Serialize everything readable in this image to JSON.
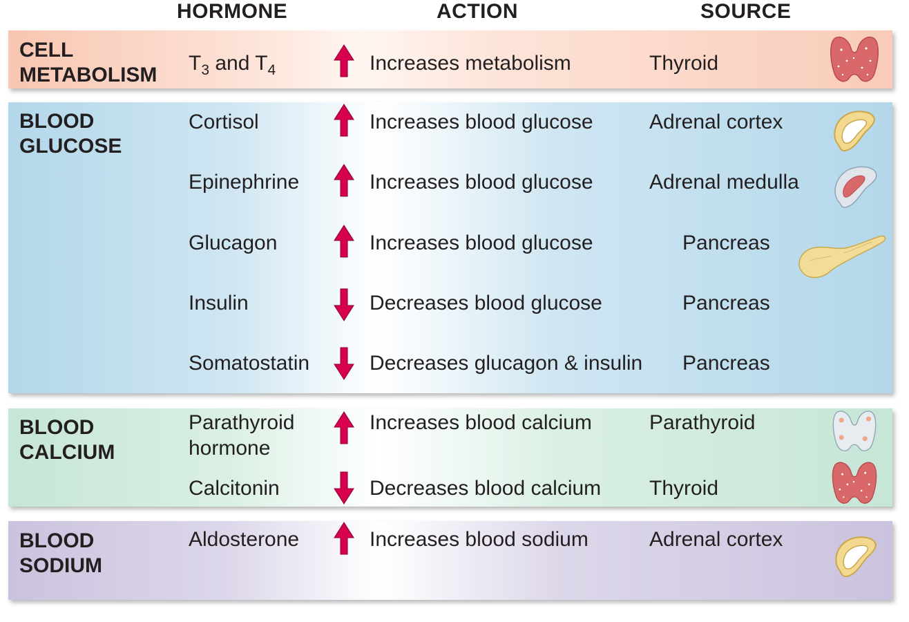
{
  "headers": {
    "hormone": "HORMONE",
    "action": "ACTION",
    "source": "SOURCE"
  },
  "categories": {
    "metabolism": [
      "CELL",
      "METABOLISM"
    ],
    "glucose": [
      "BLOOD",
      "GLUCOSE"
    ],
    "calcium": [
      "BLOOD",
      "CALCIUM"
    ],
    "sodium": [
      "BLOOD",
      "SODIUM"
    ]
  },
  "rows": {
    "t3t4": {
      "hormone_t": "T",
      "hormone_sub1": "3",
      "hormone_and": " and T",
      "hormone_sub2": "4",
      "direction": "up",
      "action": "Increases metabolism",
      "source": "Thyroid"
    },
    "cortisol": {
      "hormone": "Cortisol",
      "direction": "up",
      "action": "Increases blood glucose",
      "source": "Adrenal cortex"
    },
    "epinephrine": {
      "hormone": "Epinephrine",
      "direction": "up",
      "action": "Increases blood glucose",
      "source": "Adrenal medulla"
    },
    "glucagon": {
      "hormone": "Glucagon",
      "direction": "up",
      "action": "Increases blood glucose",
      "source": "Pancreas"
    },
    "insulin": {
      "hormone": "Insulin",
      "direction": "down",
      "action": "Decreases blood glucose",
      "source": "Pancreas"
    },
    "somatostatin": {
      "hormone": "Somatostatin",
      "direction": "down",
      "action": "Decreases glucagon & insulin",
      "source": "Pancreas"
    },
    "pth": {
      "hormone_line1": "Parathyroid",
      "hormone_line2": "hormone",
      "direction": "up",
      "action": "Increases blood calcium",
      "source": "Parathyroid"
    },
    "calcitonin": {
      "hormone": "Calcitonin",
      "direction": "down",
      "action": "Decreases blood calcium",
      "source": "Thyroid"
    },
    "aldosterone": {
      "hormone": "Aldosterone",
      "direction": "up",
      "action": "Increases blood sodium",
      "source": "Adrenal cortex"
    }
  },
  "icons": {
    "thyroid": "thyroid-gland-icon",
    "adrenal_cortex": "adrenal-cortex-icon",
    "adrenal_medulla": "adrenal-medulla-icon",
    "pancreas": "pancreas-icon",
    "parathyroid": "parathyroid-gland-icon"
  },
  "colors": {
    "arrow": "#d6004f",
    "metabolism_band": "#f8c6b1",
    "glucose_band": "#b3d7ea",
    "calcium_band": "#c6e6d6",
    "sodium_band": "#cbc3de",
    "thyroid": "#d9686b",
    "adrenal": "#f3d98f",
    "pancreas": "#f1dc98"
  }
}
